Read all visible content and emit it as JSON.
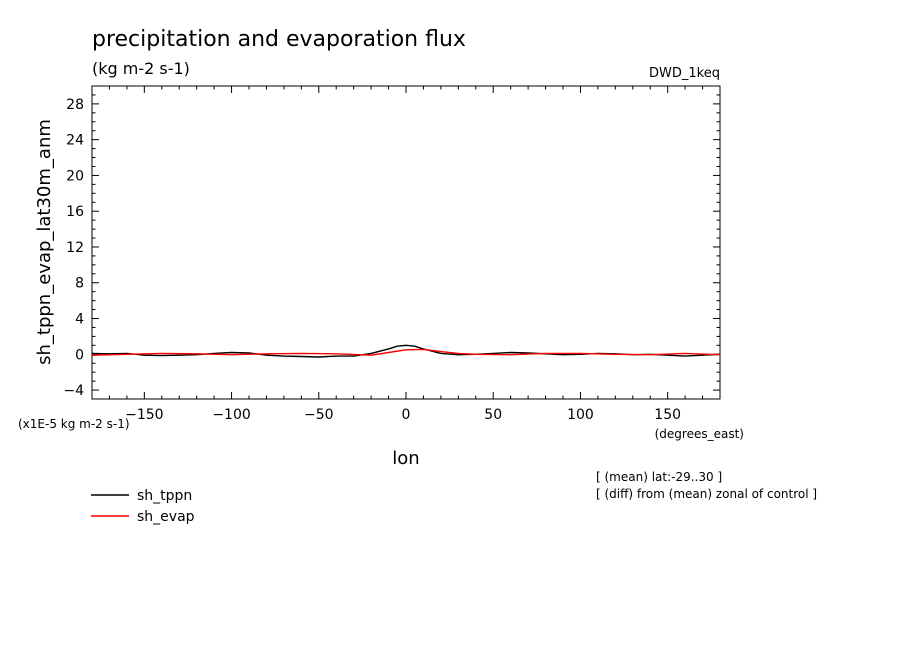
{
  "chart_data": {
    "type": "line",
    "title": "precipitation and evaporation flux",
    "subtitle": "(kg m-2 s-1)",
    "model_label": "DWD_1keq",
    "ylabel": "sh_tppn_evap_lat30m_anm",
    "xlabel": "lon",
    "x_units": "(degrees_east)",
    "y_scale_note": "(x1E-5 kg m-2 s-1)",
    "notes": [
      "[ (mean) lat:-29..30 ]",
      "[ (diff) from (mean) zonal of control ]"
    ],
    "xlim": [
      -180,
      180
    ],
    "ylim": [
      -5,
      30
    ],
    "x_ticks": [
      -150,
      -100,
      -50,
      0,
      50,
      100,
      150
    ],
    "y_ticks": [
      -4,
      0,
      4,
      8,
      12,
      16,
      20,
      24,
      28
    ],
    "legend_placement": "bottom-left",
    "series": [
      {
        "name": "sh_tppn",
        "color": "#000000",
        "x": [
          -180,
          -170,
          -160,
          -150,
          -140,
          -130,
          -120,
          -110,
          -100,
          -90,
          -80,
          -70,
          -60,
          -50,
          -40,
          -30,
          -20,
          -10,
          -5,
          0,
          5,
          10,
          20,
          30,
          40,
          50,
          60,
          70,
          80,
          90,
          100,
          110,
          120,
          130,
          140,
          150,
          160,
          170,
          180
        ],
        "y": [
          0.1,
          0.05,
          0.1,
          -0.1,
          -0.15,
          -0.1,
          -0.05,
          0.1,
          0.2,
          0.15,
          -0.1,
          -0.2,
          -0.25,
          -0.3,
          -0.2,
          -0.2,
          0.1,
          0.6,
          0.9,
          1.0,
          0.9,
          0.6,
          0.1,
          -0.05,
          0.0,
          0.1,
          0.2,
          0.15,
          0.05,
          -0.05,
          0.0,
          0.1,
          0.05,
          -0.05,
          0.0,
          -0.1,
          -0.2,
          -0.1,
          0.0
        ]
      },
      {
        "name": "sh_evap",
        "color": "#ff0000",
        "x": [
          -180,
          -160,
          -140,
          -120,
          -100,
          -80,
          -60,
          -40,
          -20,
          -10,
          0,
          10,
          20,
          30,
          40,
          60,
          80,
          100,
          120,
          140,
          160,
          180
        ],
        "y": [
          -0.1,
          0.0,
          0.1,
          0.05,
          -0.05,
          0.05,
          0.1,
          0.05,
          -0.1,
          0.2,
          0.5,
          0.55,
          0.3,
          0.1,
          0.0,
          -0.05,
          0.1,
          0.1,
          0.0,
          -0.05,
          0.1,
          -0.05
        ]
      }
    ]
  }
}
